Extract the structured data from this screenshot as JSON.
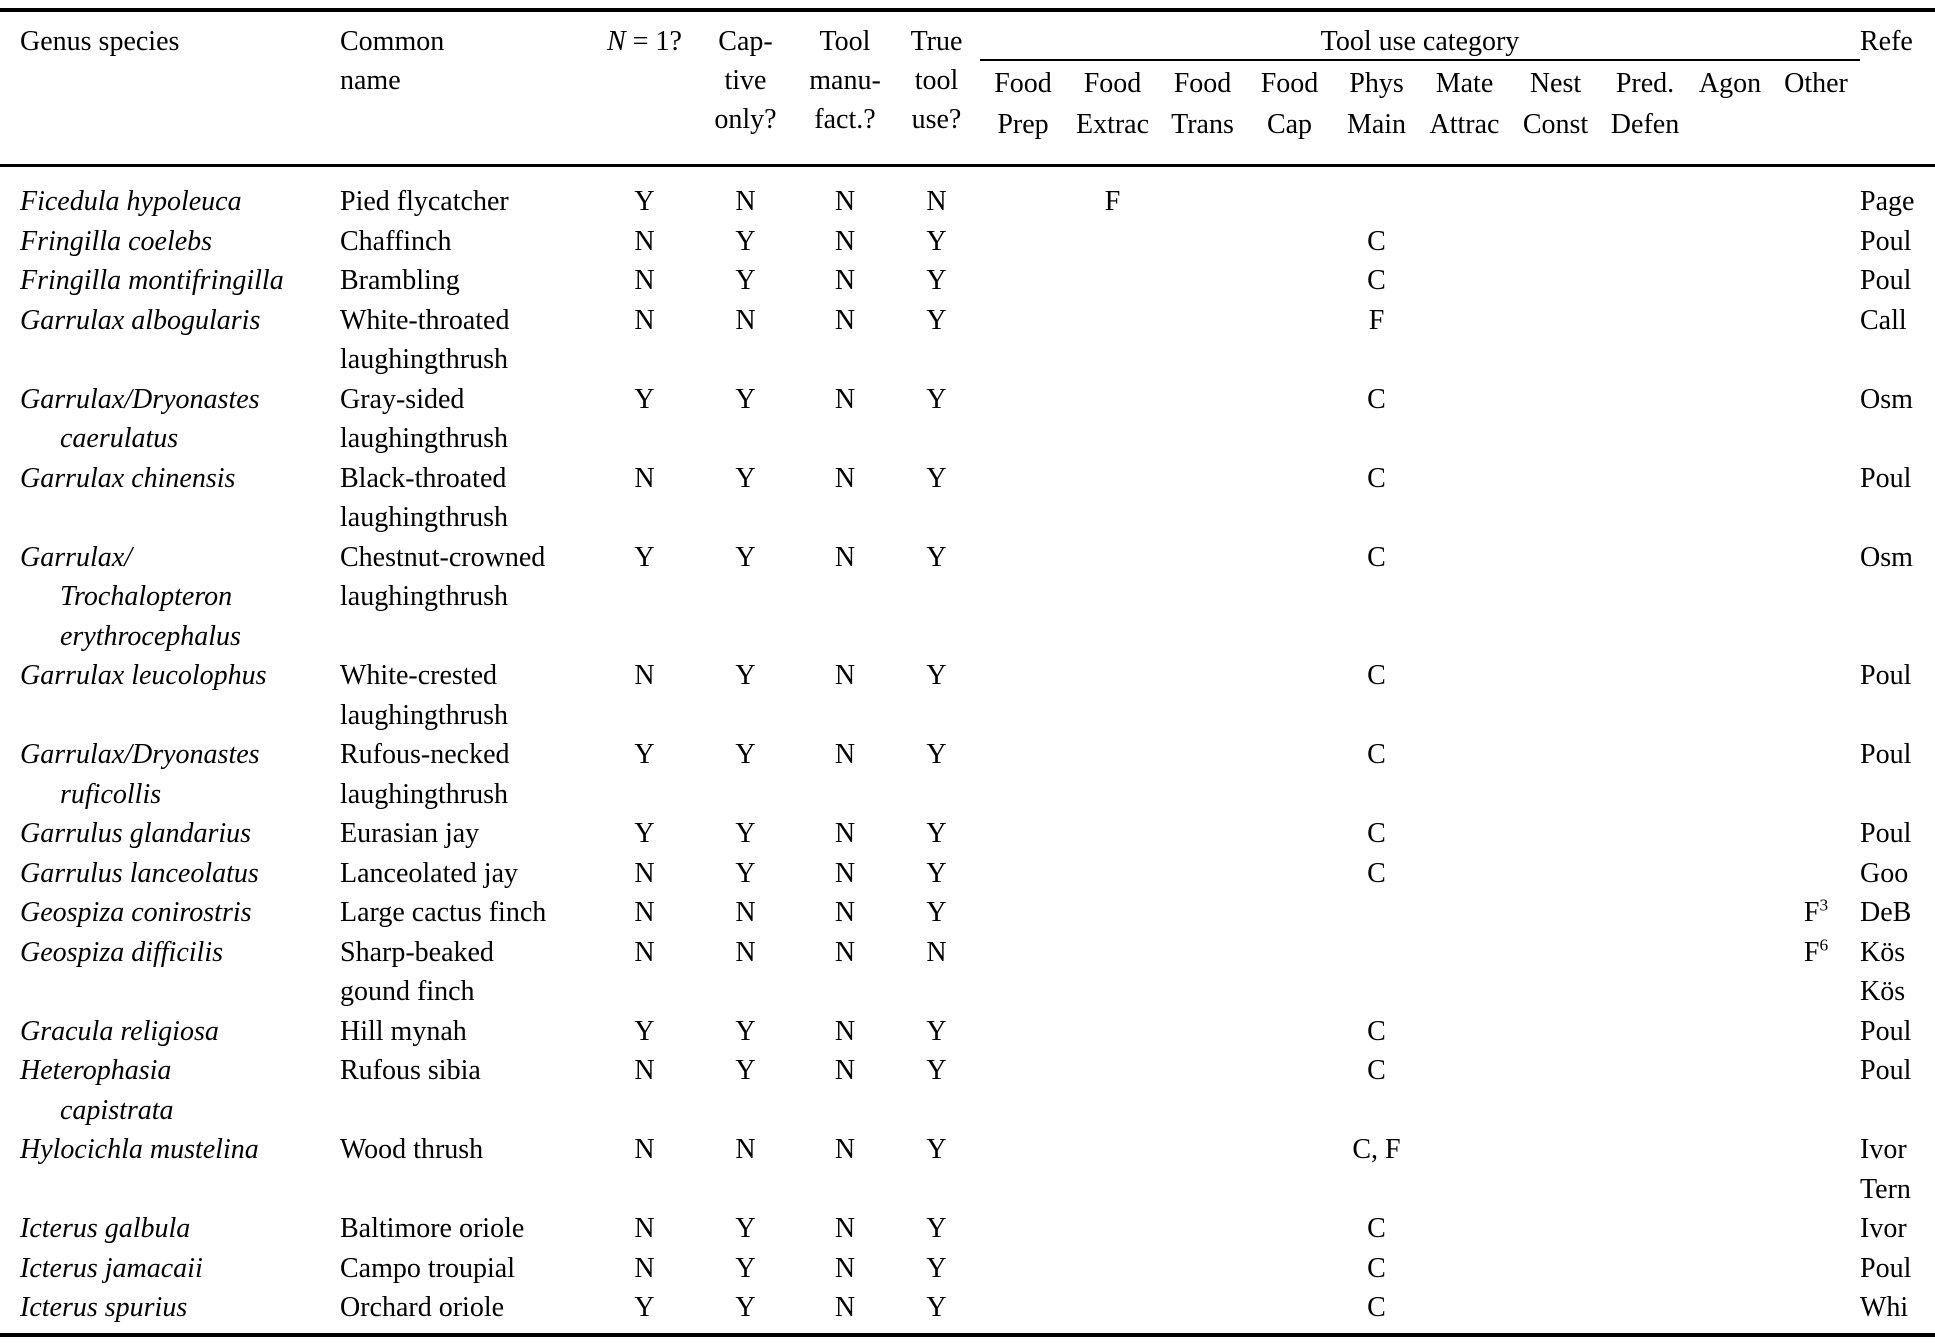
{
  "page": {
    "background": "#ffffff",
    "text_color": "#000000"
  },
  "table": {
    "headers": {
      "genus": "Genus species",
      "common": [
        "Common",
        "name"
      ],
      "n1": {
        "italic": "N",
        "rest": " = 1?"
      },
      "captive": [
        "Cap-",
        "tive",
        "only?"
      ],
      "manufact": [
        "Tool",
        "manu-",
        "fact.?"
      ],
      "truetool": [
        "True",
        "tool",
        "use?"
      ],
      "category_group": "Tool use category",
      "categories": [
        [
          "Food",
          "Prep"
        ],
        [
          "Food",
          "Extrac"
        ],
        [
          "Food",
          "Trans"
        ],
        [
          "Food",
          "Cap"
        ],
        [
          "Phys",
          "Main"
        ],
        [
          "Mate",
          "Attrac"
        ],
        [
          "Nest",
          "Const"
        ],
        [
          "Pred.",
          "Defen"
        ],
        [
          "Agon"
        ],
        [
          "Other"
        ]
      ],
      "reference": "Refe"
    },
    "rows": [
      {
        "genus": [
          "Ficedula hypoleuca"
        ],
        "common": [
          "Pied flycatcher"
        ],
        "n1": "Y",
        "captive": "N",
        "manufact": "N",
        "truetool": "N",
        "cats": {
          "food_extrac": "F"
        },
        "refs": [
          "Page"
        ]
      },
      {
        "genus": [
          "Fringilla coelebs"
        ],
        "common": [
          "Chaffinch"
        ],
        "n1": "N",
        "captive": "Y",
        "manufact": "N",
        "truetool": "Y",
        "cats": {
          "phys_main": "C"
        },
        "refs": [
          "Poul"
        ]
      },
      {
        "genus": [
          "Fringilla montifringilla"
        ],
        "common": [
          "Brambling"
        ],
        "n1": "N",
        "captive": "Y",
        "manufact": "N",
        "truetool": "Y",
        "cats": {
          "phys_main": "C"
        },
        "refs": [
          "Poul"
        ]
      },
      {
        "genus": [
          "Garrulax albogularis"
        ],
        "common": [
          "White-throated",
          "laughingthrush"
        ],
        "n1": "N",
        "captive": "N",
        "manufact": "N",
        "truetool": "Y",
        "cats": {
          "phys_main": "F"
        },
        "refs": [
          "Call"
        ]
      },
      {
        "genus": [
          "Garrulax/Dryonastes",
          "caerulatus"
        ],
        "common": [
          "Gray-sided",
          "laughingthrush"
        ],
        "n1": "Y",
        "captive": "Y",
        "manufact": "N",
        "truetool": "Y",
        "cats": {
          "phys_main": "C"
        },
        "refs": [
          "Osm"
        ]
      },
      {
        "genus": [
          "Garrulax chinensis"
        ],
        "common": [
          "Black-throated",
          "laughingthrush"
        ],
        "n1": "N",
        "captive": "Y",
        "manufact": "N",
        "truetool": "Y",
        "cats": {
          "phys_main": "C"
        },
        "refs": [
          "Poul"
        ]
      },
      {
        "genus": [
          "Garrulax/",
          "Trochalopteron",
          "erythrocephalus"
        ],
        "common": [
          "Chestnut-crowned",
          "laughingthrush"
        ],
        "n1": "Y",
        "captive": "Y",
        "manufact": "N",
        "truetool": "Y",
        "cats": {
          "phys_main": "C"
        },
        "refs": [
          "Osm"
        ]
      },
      {
        "genus": [
          "Garrulax leucolophus"
        ],
        "common": [
          "White-crested",
          "laughingthrush"
        ],
        "n1": "N",
        "captive": "Y",
        "manufact": "N",
        "truetool": "Y",
        "cats": {
          "phys_main": "C"
        },
        "refs": [
          "Poul"
        ]
      },
      {
        "genus": [
          "Garrulax/Dryonastes",
          "ruficollis"
        ],
        "common": [
          "Rufous-necked",
          "laughingthrush"
        ],
        "n1": "Y",
        "captive": "Y",
        "manufact": "N",
        "truetool": "Y",
        "cats": {
          "phys_main": "C"
        },
        "refs": [
          "Poul"
        ]
      },
      {
        "genus": [
          "Garrulus glandarius"
        ],
        "common": [
          "Eurasian jay"
        ],
        "n1": "Y",
        "captive": "Y",
        "manufact": "N",
        "truetool": "Y",
        "cats": {
          "phys_main": "C"
        },
        "refs": [
          "Poul"
        ]
      },
      {
        "genus": [
          "Garrulus lanceolatus"
        ],
        "common": [
          "Lanceolated jay"
        ],
        "n1": "N",
        "captive": "Y",
        "manufact": "N",
        "truetool": "Y",
        "cats": {
          "phys_main": "C"
        },
        "refs": [
          "Goo"
        ]
      },
      {
        "genus": [
          "Geospiza conirostris"
        ],
        "common": [
          "Large cactus finch"
        ],
        "n1": "N",
        "captive": "N",
        "manufact": "N",
        "truetool": "Y",
        "cats": {
          "other": "F^3"
        },
        "refs": [
          "DeB"
        ]
      },
      {
        "genus": [
          "Geospiza difficilis"
        ],
        "common": [
          "Sharp-beaked",
          "gound finch"
        ],
        "n1": "N",
        "captive": "N",
        "manufact": "N",
        "truetool": "N",
        "cats": {
          "other": "F^6"
        },
        "refs": [
          "Kös",
          "Kös"
        ]
      },
      {
        "genus": [
          "Gracula religiosa"
        ],
        "common": [
          "Hill mynah"
        ],
        "n1": "Y",
        "captive": "Y",
        "manufact": "N",
        "truetool": "Y",
        "cats": {
          "phys_main": "C"
        },
        "refs": [
          "Poul"
        ]
      },
      {
        "genus": [
          "Heterophasia",
          "capistrata"
        ],
        "common": [
          "Rufous sibia"
        ],
        "n1": "N",
        "captive": "Y",
        "manufact": "N",
        "truetool": "Y",
        "cats": {
          "phys_main": "C"
        },
        "refs": [
          "Poul"
        ]
      },
      {
        "genus": [
          "Hylocichla mustelina"
        ],
        "common": [
          "Wood thrush"
        ],
        "n1": "N",
        "captive": "N",
        "manufact": "N",
        "truetool": "Y",
        "cats": {
          "phys_main": "C, F"
        },
        "refs": [
          "Ivor",
          "Tern"
        ]
      },
      {
        "genus": [
          "Icterus galbula"
        ],
        "common": [
          "Baltimore oriole"
        ],
        "n1": "N",
        "captive": "Y",
        "manufact": "N",
        "truetool": "Y",
        "cats": {
          "phys_main": "C"
        },
        "refs": [
          "Ivor"
        ]
      },
      {
        "genus": [
          "Icterus jamacaii"
        ],
        "common": [
          "Campo troupial"
        ],
        "n1": "N",
        "captive": "Y",
        "manufact": "N",
        "truetool": "Y",
        "cats": {
          "phys_main": "C"
        },
        "refs": [
          "Poul"
        ]
      },
      {
        "genus": [
          "Icterus spurius"
        ],
        "common": [
          "Orchard oriole"
        ],
        "n1": "Y",
        "captive": "Y",
        "manufact": "N",
        "truetool": "Y",
        "cats": {
          "phys_main": "C"
        },
        "refs": [
          "Whi"
        ]
      }
    ]
  }
}
